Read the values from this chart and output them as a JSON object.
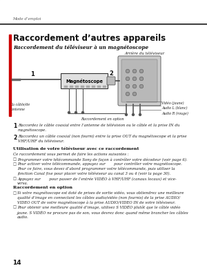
{
  "bg_color": "#f5f5f0",
  "page_bg": "#ffffff",
  "header_text": "Mode d’emploi",
  "title": "Raccordement d’autres appareils",
  "subtitle": "Raccordement du téléviseur à un magnétoscope",
  "diagram_label_vcr": "Magnétoscope",
  "diagram_label_back": "Arrière du téléviseur",
  "diagram_label_cable": "Du câble/de\nl’antenne",
  "diagram_label_optional": "Raccordement en option",
  "diagram_label_video": "Vidéo (jaune)\nAudio L (blanc)\nAudio R (rouge)",
  "step1_num": "1",
  "step1_text": "Raccordez le câble coaxial entre l’antenne de télévision ou le câble et la prise IN du\nmagnétoscope.",
  "step2_num": "2",
  "step2_text": "Raccordez un câble coaxial (non fourni) entre la prise OUT du magnétoscope et la prise\nVHF/UHF du téléviseur.",
  "section_header1": "Utilisation de votre téléviseur avec ce raccordement",
  "section_intro": "Ce raccordement vous permet de faire les actions suivantes :",
  "bullet1": "Programmer votre télécommande Sony de façon à contrôler votre décodeur (voir page 6).",
  "bullet2": "Pour activer votre télécommande, appuyez sur       pour contrôler votre magnétoscope.\nPour ce faire, vous devez d’abord programmer votre télécommande, puis utiliser la\nfonction Canal fixe pour placer votre téléviseur au canal 3 ou 4 (voir la page 30).",
  "bullet3": "Appuyez sur       pour passer de l’entrée VIDÉO à VHF/UHF (canaux locaux) et vice-\nversa.",
  "section_header2": "Raccordement en option",
  "bullet4": "Si votre magnétoscope est doté de prises de sortie vidéo, vous obtiendrez une meilleure\nqualité d’image en connectant les câbles audio/vidéo (non fournis) de la prise AUDIO/\nVIDEO OUT de votre magnétoscope à la prise AUDIO/VIDEO IN de votre téléviseur.",
  "bullet5": "Pour obtenir une meilleure qualité d’image, utilisez S VIDÉO plutôt que le câble vidéo\njaune. S VIDÉO ne procure pas de son, vous devrez donc quand même brancher les câbles\naudio.",
  "page_number": "14",
  "red_bar_color": "#cc0000",
  "text_dark": "#1a1a1a",
  "text_med": "#2a2a2a",
  "line_color": "#555555",
  "diagram_color": "#aaaaaa"
}
